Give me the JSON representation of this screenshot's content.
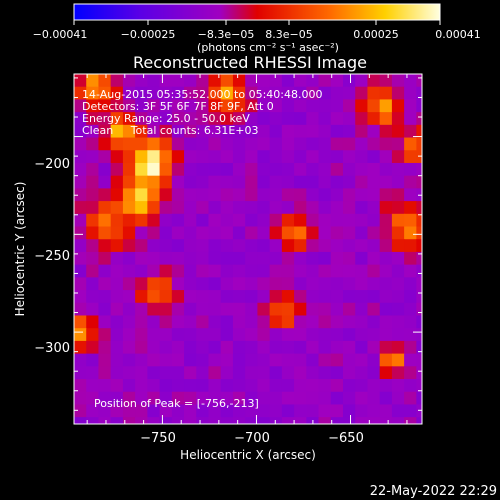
{
  "chart_data": {
    "type": "heatmap",
    "title": "Reconstructed RHESSI Image",
    "xlabel": "Heliocentric X (arcsec)",
    "ylabel": "Heliocentric Y (arcsec)",
    "xlim": [
      -797,
      -612
    ],
    "ylim": [
      -347,
      -168
    ],
    "xticks": [
      -750,
      -700,
      -650
    ],
    "yticks": [
      -200,
      -250,
      -300
    ],
    "xtick_labels": [
      "−750",
      "−700",
      "−650"
    ],
    "ytick_labels": [
      "−200",
      "−250",
      "−300"
    ],
    "colorbar": {
      "range": [
        -0.00041,
        0.00041
      ],
      "ticks": [
        "−0.00041",
        "−0.00025",
        "−8.3e−05",
        "8.3e−05",
        "0.00025",
        "0.00041"
      ],
      "unit_line": "(photons cm⁻² s⁻¹ asec⁻²)",
      "colors": [
        "#0000ff",
        "#5a00e6",
        "#a000c0",
        "#e00000",
        "#ff6a00",
        "#ffd000",
        "#ffffe0"
      ]
    },
    "annotations": [
      "14-Aug-2015 05:35:52.000 to 05:40:48.000",
      "Detectors: 3F 5F 6F 7F 8F 9F, Att 0",
      "Energy Range: 25.0 - 50.0 keV",
      "Clean     Total counts: 6.31E+03"
    ],
    "peak_label": "Position of Peak = [-756,-213]",
    "peak": [
      -756,
      -213
    ],
    "sources": [
      {
        "x": -756,
        "y": -213,
        "intensity": 0.00041,
        "sigma": 8
      },
      {
        "x": -762,
        "y": -232,
        "intensity": 0.0003,
        "sigma": 7
      },
      {
        "x": -772,
        "y": -197,
        "intensity": 0.00025,
        "sigma": 6
      },
      {
        "x": -785,
        "y": -175,
        "intensity": 0.00024,
        "sigma": 7
      },
      {
        "x": -715,
        "y": -178,
        "intensity": 0.00022,
        "sigma": 7
      },
      {
        "x": -633,
        "y": -185,
        "intensity": 0.00022,
        "sigma": 7
      },
      {
        "x": -780,
        "y": -245,
        "intensity": 0.00015,
        "sigma": 9
      },
      {
        "x": -795,
        "y": -300,
        "intensity": 0.0002,
        "sigma": 6
      },
      {
        "x": -620,
        "y": -245,
        "intensity": 0.0002,
        "sigma": 8
      },
      {
        "x": -680,
        "y": -250,
        "intensity": 0.00018,
        "sigma": 6
      },
      {
        "x": -685,
        "y": -290,
        "intensity": 0.00016,
        "sigma": 6
      },
      {
        "x": -627,
        "y": -315,
        "intensity": 0.00028,
        "sigma": 4
      },
      {
        "x": -752,
        "y": -280,
        "intensity": 0.00015,
        "sigma": 7
      },
      {
        "x": -615,
        "y": -205,
        "intensity": 0.00018,
        "sigma": 6
      }
    ]
  },
  "timestamp": "22-May-2022 22:29"
}
